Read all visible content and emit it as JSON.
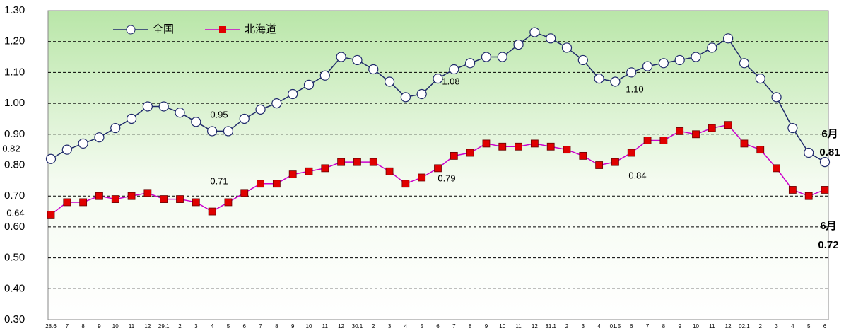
{
  "chart_data": {
    "type": "line",
    "categories": [
      "28.6",
      "7",
      "8",
      "9",
      "10",
      "11",
      "12",
      "29.1",
      "2",
      "3",
      "4",
      "5",
      "6",
      "7",
      "8",
      "9",
      "10",
      "11",
      "12",
      "30.1",
      "2",
      "3",
      "4",
      "5",
      "6",
      "7",
      "8",
      "9",
      "10",
      "11",
      "12",
      "31.1",
      "2",
      "3",
      "4",
      "01.5",
      "6",
      "7",
      "8",
      "9",
      "10",
      "11",
      "12",
      "02.1",
      "2",
      "3",
      "4",
      "5",
      "6"
    ],
    "series": [
      {
        "name": "全国",
        "color": "#1f2a6b",
        "marker": "circle",
        "values": [
          0.82,
          0.85,
          0.87,
          0.89,
          0.92,
          0.95,
          0.99,
          0.99,
          0.97,
          0.94,
          0.91,
          0.91,
          0.95,
          0.98,
          1.0,
          1.03,
          1.06,
          1.09,
          1.15,
          1.14,
          1.11,
          1.07,
          1.02,
          1.03,
          1.08,
          1.11,
          1.13,
          1.15,
          1.15,
          1.19,
          1.23,
          1.21,
          1.18,
          1.14,
          1.08,
          1.07,
          1.1,
          1.12,
          1.13,
          1.14,
          1.15,
          1.18,
          1.21,
          1.13,
          1.08,
          1.02,
          0.92,
          0.84,
          0.81
        ]
      },
      {
        "name": "北海道",
        "color": "#e00000",
        "marker": "square",
        "values": [
          0.64,
          0.68,
          0.68,
          0.7,
          0.69,
          0.7,
          0.71,
          0.69,
          0.69,
          0.68,
          0.65,
          0.68,
          0.71,
          0.74,
          0.74,
          0.77,
          0.78,
          0.79,
          0.81,
          0.81,
          0.81,
          0.78,
          0.74,
          0.76,
          0.79,
          0.83,
          0.84,
          0.87,
          0.86,
          0.86,
          0.87,
          0.86,
          0.85,
          0.83,
          0.8,
          0.81,
          0.84,
          0.88,
          0.88,
          0.91,
          0.9,
          0.92,
          0.93,
          0.87,
          0.85,
          0.79,
          0.72,
          0.7,
          0.72
        ]
      }
    ],
    "ylim": [
      0.3,
      1.3
    ],
    "yticks": [
      {
        "value": 0.3,
        "label": "0.30"
      },
      {
        "value": 0.4,
        "label": "0.40"
      },
      {
        "value": 0.5,
        "label": "0.50"
      },
      {
        "value": 0.6,
        "label": "0.60"
      },
      {
        "value": 0.7,
        "label": "0.70"
      },
      {
        "value": 0.8,
        "label": "0.80"
      },
      {
        "value": 0.9,
        "label": "0.90"
      },
      {
        "value": 1.0,
        "label": "1.00"
      },
      {
        "value": 1.1,
        "label": "1.10"
      },
      {
        "value": 1.2,
        "label": "1.20"
      },
      {
        "value": 1.3,
        "label": "1.30"
      }
    ],
    "grid": true,
    "legend": "top-left",
    "annotations": [
      "0.82",
      "0.64",
      "0.95",
      "0.71",
      "1.08",
      "0.79",
      "1.10",
      "0.84",
      "6月",
      "0.81",
      "6月",
      "0.72"
    ]
  }
}
